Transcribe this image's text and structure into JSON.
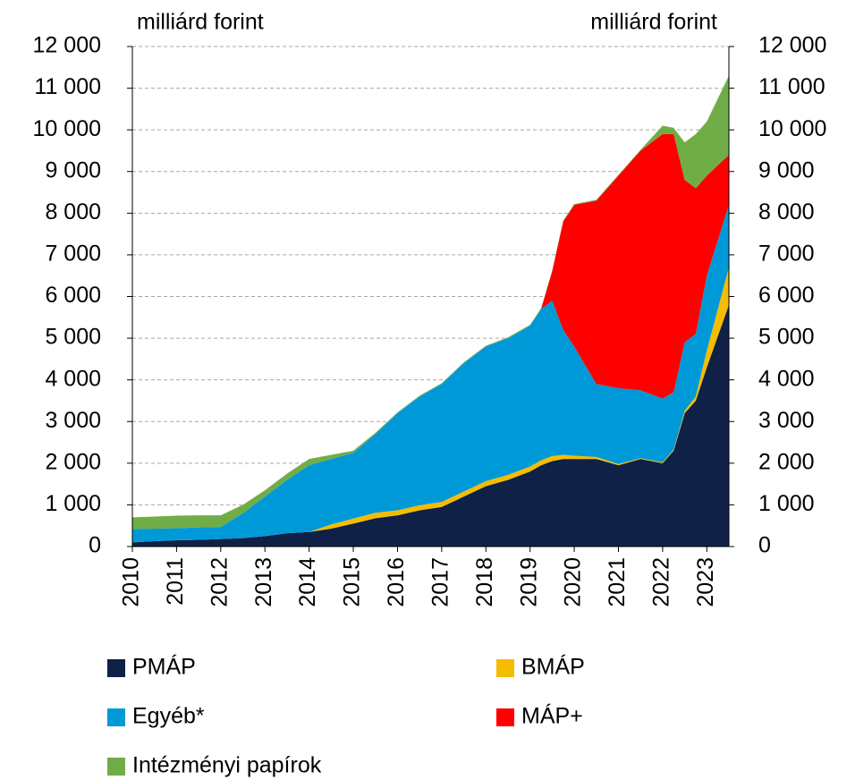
{
  "chart_data": {
    "type": "stacked_area",
    "y_label": "milliárd forint",
    "y2_label": "milliárd forint",
    "x": [
      2010,
      2010.5,
      2011,
      2011.5,
      2012,
      2012.5,
      2013,
      2013.5,
      2014,
      2014.5,
      2015,
      2015.5,
      2016,
      2016.5,
      2017,
      2017.5,
      2018,
      2018.5,
      2019,
      2019.25,
      2019.5,
      2019.75,
      2020,
      2020.5,
      2021,
      2021.5,
      2022,
      2022.25,
      2022.5,
      2022.75,
      2023,
      2023.5
    ],
    "xlim": [
      2010,
      2023.5
    ],
    "xticks": [
      2010,
      2011,
      2012,
      2013,
      2014,
      2015,
      2016,
      2017,
      2018,
      2019,
      2020,
      2021,
      2022,
      2023
    ],
    "ylim": [
      0,
      12000
    ],
    "yticks": [
      0,
      {
        "value": 1000,
        "label": "1 000"
      },
      {
        "value": 2000,
        "label": "2 000"
      },
      {
        "value": 3000,
        "label": "3 000"
      },
      {
        "value": 4000,
        "label": "4 000"
      },
      {
        "value": 5000,
        "label": "5 000"
      },
      {
        "value": 6000,
        "label": "6 000"
      },
      {
        "value": 7000,
        "label": "7 000"
      },
      {
        "value": 8000,
        "label": "8 000"
      },
      {
        "value": 9000,
        "label": "9 000"
      },
      {
        "value": 10000,
        "label": "10 000"
      },
      {
        "value": 11000,
        "label": "11 000"
      },
      {
        "value": 12000,
        "label": "12 000"
      }
    ],
    "y2lim": [
      0,
      12000
    ],
    "y2ticks": [
      0,
      {
        "value": 1000,
        "label": "1 000"
      },
      {
        "value": 2000,
        "label": "2 000"
      },
      {
        "value": 3000,
        "label": "3 000"
      },
      {
        "value": 4000,
        "label": "4 000"
      },
      {
        "value": 5000,
        "label": "5 000"
      },
      {
        "value": 6000,
        "label": "6 000"
      },
      {
        "value": 7000,
        "label": "7 000"
      },
      {
        "value": 8000,
        "label": "8 000"
      },
      {
        "value": 9000,
        "label": "9 000"
      },
      {
        "value": 10000,
        "label": "10 000"
      },
      {
        "value": 11000,
        "label": "11 000"
      },
      {
        "value": 12000,
        "label": "12 000"
      }
    ],
    "grid": true,
    "series": [
      {
        "name": "PMÁP",
        "color": "#0f2147",
        "values": [
          100,
          130,
          150,
          160,
          180,
          200,
          250,
          320,
          350,
          430,
          550,
          680,
          750,
          870,
          950,
          1200,
          1450,
          1600,
          1800,
          1950,
          2050,
          2100,
          2100,
          2100,
          1950,
          2100,
          2000,
          2300,
          3200,
          3500,
          4300,
          5800
        ]
      },
      {
        "name": "BMÁP",
        "color": "#f5bc00",
        "values": [
          0,
          0,
          0,
          0,
          0,
          0,
          0,
          0,
          0,
          100,
          120,
          130,
          120,
          120,
          120,
          120,
          120,
          120,
          120,
          120,
          120,
          100,
          80,
          50,
          30,
          20,
          20,
          30,
          60,
          100,
          400,
          900
        ]
      },
      {
        "name": "Egyéb*",
        "color": "#0099d8",
        "values": [
          320,
          300,
          290,
          300,
          290,
          600,
          950,
          1280,
          1600,
          1570,
          1580,
          1890,
          2330,
          2610,
          2830,
          3080,
          3230,
          3280,
          3380,
          3630,
          3730,
          3000,
          2620,
          1750,
          1820,
          1630,
          1530,
          1370,
          1640,
          1500,
          1800,
          1500
        ]
      },
      {
        "name": "MÁP+",
        "color": "#ff0000",
        "values": [
          0,
          0,
          0,
          0,
          0,
          0,
          0,
          0,
          0,
          0,
          0,
          0,
          0,
          0,
          0,
          0,
          0,
          0,
          0,
          0,
          700,
          2600,
          3400,
          4400,
          5100,
          5750,
          6350,
          6200,
          3900,
          3500,
          2400,
          1200
        ]
      },
      {
        "name": "Intézményi papírok",
        "color": "#70ad47",
        "values": [
          280,
          290,
          300,
          290,
          280,
          200,
          150,
          150,
          150,
          100,
          50,
          30,
          20,
          20,
          20,
          20,
          20,
          20,
          20,
          20,
          20,
          20,
          20,
          20,
          20,
          20,
          200,
          150,
          900,
          1300,
          1300,
          1900
        ]
      }
    ]
  }
}
